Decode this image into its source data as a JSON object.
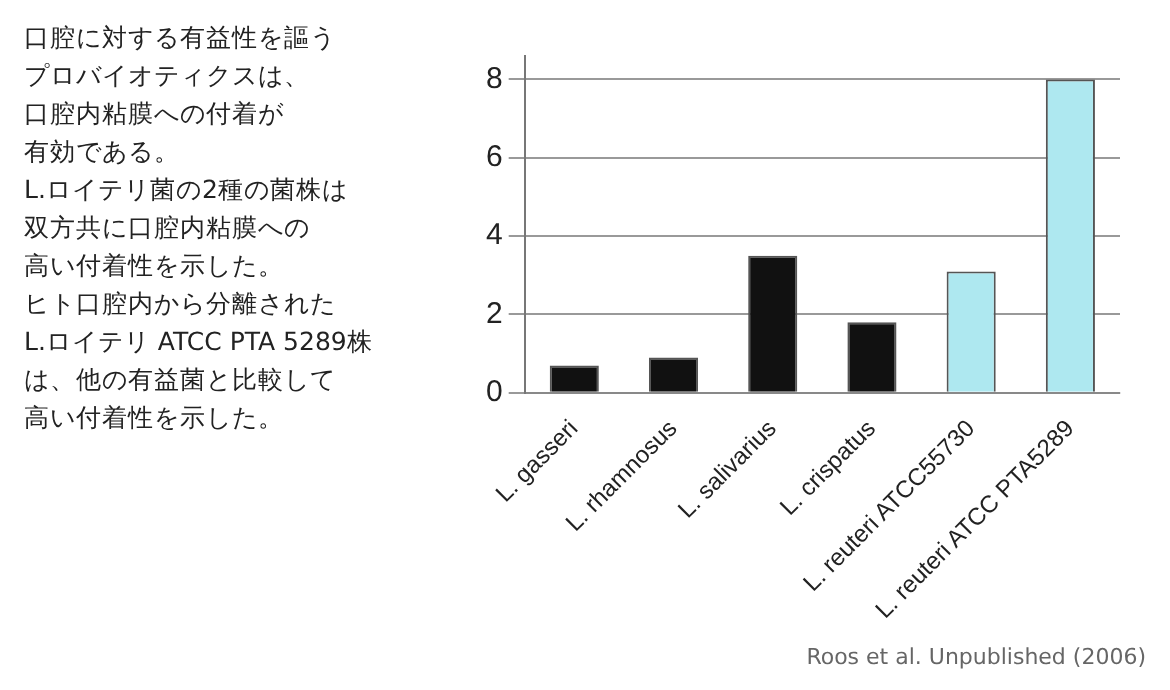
{
  "chart_data": {
    "type": "bar",
    "categories": [
      "L. gasseri",
      "L. rhamnosus",
      "L. salivarius",
      "L. crispatus",
      "L. reuteri ATCC55730",
      "L. reuteri ATCC PTA5289"
    ],
    "values": [
      0.7,
      0.9,
      3.5,
      1.8,
      3.1,
      8.0
    ],
    "colors": [
      "#111111",
      "#111111",
      "#111111",
      "#111111",
      "#aee8f0",
      "#aee8f0"
    ],
    "ylim": [
      0,
      8.6
    ],
    "yticks": [
      0,
      2,
      4,
      6,
      8
    ],
    "grid": "y",
    "annotations": [
      "口腔に対する有益性を謳う",
      "プロバイオティクスは、",
      "口腔内粘膜への付着が",
      "有効である。",
      "L.ロイテリ菌の2種の菌株は",
      "双方共に口腔内粘膜への",
      "高い付着性を示した。",
      "ヒト口腔内から分離された",
      "L.ロイテリ ATCC PTA 5289株",
      "は、他の有益菌と比較して",
      "高い付着性を示した。",
      "Roos et al. Unpublished (2006)"
    ]
  }
}
